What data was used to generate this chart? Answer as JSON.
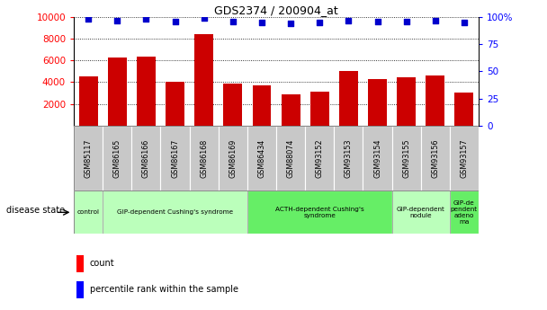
{
  "title": "GDS2374 / 200904_at",
  "samples": [
    "GSM85117",
    "GSM86165",
    "GSM86166",
    "GSM86167",
    "GSM86168",
    "GSM86169",
    "GSM86434",
    "GSM88074",
    "GSM93152",
    "GSM93153",
    "GSM93154",
    "GSM93155",
    "GSM93156",
    "GSM93157"
  ],
  "counts": [
    4550,
    6300,
    6350,
    4050,
    8400,
    3850,
    3700,
    2850,
    3100,
    5000,
    4300,
    4450,
    4650,
    3050
  ],
  "percentiles": [
    98,
    97,
    98,
    96,
    99,
    96,
    95,
    94,
    95,
    97,
    96,
    96,
    97,
    95
  ],
  "bar_color": "#cc0000",
  "dot_color": "#0000cc",
  "ylim_left": [
    0,
    10000
  ],
  "ylim_right": [
    0,
    100
  ],
  "yticks_left": [
    2000,
    4000,
    6000,
    8000,
    10000
  ],
  "yticks_right": [
    0,
    25,
    50,
    75,
    100
  ],
  "disease_groups": [
    {
      "label": "control",
      "start": 0,
      "end": 1,
      "color": "#bbffbb"
    },
    {
      "label": "GIP-dependent Cushing's syndrome",
      "start": 1,
      "end": 6,
      "color": "#bbffbb"
    },
    {
      "label": "ACTH-dependent Cushing's\nsyndrome",
      "start": 6,
      "end": 11,
      "color": "#66ee66"
    },
    {
      "label": "GIP-dependent\nnodule",
      "start": 11,
      "end": 13,
      "color": "#bbffbb"
    },
    {
      "label": "GIP-de\npendent\nadeno\nma",
      "start": 13,
      "end": 14,
      "color": "#66ee66"
    }
  ],
  "xlabel_disease": "disease state",
  "legend_count": "count",
  "legend_percentile": "percentile rank within the sample",
  "sample_box_color": "#c8c8c8"
}
